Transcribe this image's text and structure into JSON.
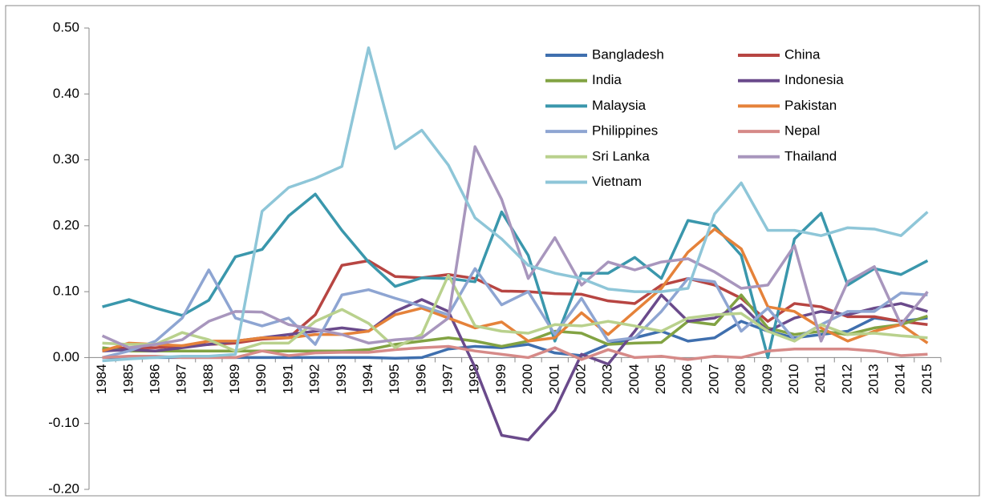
{
  "chart_data": {
    "type": "line",
    "categories": [
      "1984",
      "1985",
      "1986",
      "1987",
      "1988",
      "1989",
      "1990",
      "1991",
      "1992",
      "1993",
      "1994",
      "1995",
      "1996",
      "1997",
      "1998",
      "1999",
      "2000",
      "2001",
      "2002",
      "2003",
      "2004",
      "2005",
      "2006",
      "2007",
      "2008",
      "2009",
      "2010",
      "2011",
      "2012",
      "2013",
      "2014",
      "2015"
    ],
    "ylim": [
      -0.2,
      0.5
    ],
    "yticks": [
      {
        "value": -0.2,
        "label": "-0.20"
      },
      {
        "value": -0.1,
        "label": "-0.10"
      },
      {
        "value": 0,
        "label": "0.00"
      },
      {
        "value": 0.1,
        "label": "0.10"
      },
      {
        "value": 0.2,
        "label": "0.20"
      },
      {
        "value": 0.3,
        "label": "0.30"
      },
      {
        "value": 0.4,
        "label": "0.40"
      },
      {
        "value": 0.5,
        "label": "0.50"
      }
    ],
    "grid": false,
    "legend_position": "top-right",
    "series": [
      {
        "name": "Bangladesh",
        "color": "#3f6fae",
        "values": [
          0,
          0,
          0,
          0,
          0,
          0,
          0,
          0,
          0,
          0,
          0,
          -0.001,
          0,
          0.013,
          0.017,
          0.015,
          0.02,
          0.007,
          0.003,
          0.02,
          0.03,
          0.04,
          0.025,
          0.03,
          0.055,
          0.04,
          0.03,
          0.035,
          0.04,
          0.06,
          0.055,
          0.06
        ]
      },
      {
        "name": "China",
        "color": "#b74542",
        "values": [
          0.012,
          0.015,
          0.015,
          0.018,
          0.02,
          0.022,
          0.028,
          0.03,
          0.065,
          0.14,
          0.147,
          0.123,
          0.121,
          0.126,
          0.12,
          0.101,
          0.1,
          0.097,
          0.096,
          0.086,
          0.082,
          0.11,
          0.12,
          0.11,
          0.09,
          0.055,
          0.082,
          0.077,
          0.062,
          0.062,
          0.055,
          0.05
        ]
      },
      {
        "name": "India",
        "color": "#82a343",
        "values": [
          0.015,
          0.01,
          0.01,
          0.01,
          0.01,
          0.01,
          0.01,
          0.01,
          0.01,
          0.01,
          0.012,
          0.02,
          0.025,
          0.03,
          0.025,
          0.017,
          0.025,
          0.04,
          0.037,
          0.02,
          0.022,
          0.023,
          0.055,
          0.05,
          0.095,
          0.045,
          0.035,
          0.04,
          0.035,
          0.045,
          0.05,
          0.063
        ]
      },
      {
        "name": "Indonesia",
        "color": "#6a4a8b",
        "values": [
          0.01,
          0.012,
          0.01,
          0.015,
          0.02,
          0.025,
          0.03,
          0.035,
          0.04,
          0.045,
          0.04,
          0.07,
          0.088,
          0.07,
          -0.015,
          -0.118,
          -0.125,
          -0.08,
          0.005,
          -0.01,
          0.04,
          0.095,
          0.055,
          0.06,
          0.08,
          0.04,
          0.06,
          0.07,
          0.065,
          0.075,
          0.082,
          0.07
        ]
      },
      {
        "name": "Malaysia",
        "color": "#3a97ac",
        "values": [
          0.077,
          0.088,
          0.075,
          0.064,
          0.087,
          0.153,
          0.164,
          0.215,
          0.248,
          0.193,
          0.145,
          0.108,
          0.121,
          0.12,
          0.115,
          0.221,
          0.155,
          0.025,
          0.128,
          0.128,
          0.152,
          0.12,
          0.208,
          0.2,
          0.155,
          0,
          0.18,
          0.219,
          0.11,
          0.135,
          0.126,
          0.147
        ]
      },
      {
        "name": "Pakistan",
        "color": "#e5823a",
        "values": [
          0.01,
          0.022,
          0.02,
          0.018,
          0.025,
          0.025,
          0.03,
          0.03,
          0.035,
          0.035,
          0.04,
          0.065,
          0.075,
          0.06,
          0.045,
          0.054,
          0.025,
          0.03,
          0.068,
          0.035,
          0.07,
          0.105,
          0.16,
          0.195,
          0.165,
          0.077,
          0.07,
          0.045,
          0.025,
          0.04,
          0.05,
          0.022
        ]
      },
      {
        "name": "Philippines",
        "color": "#8ea5d2",
        "values": [
          0,
          0.01,
          0.025,
          0.06,
          0.133,
          0.06,
          0.048,
          0.06,
          0.02,
          0.095,
          0.103,
          0.09,
          0.078,
          0.065,
          0.135,
          0.08,
          0.1,
          0.035,
          0.09,
          0.025,
          0.03,
          0.07,
          0.12,
          0.115,
          0.04,
          0.075,
          0.027,
          0.05,
          0.07,
          0.07,
          0.098,
          0.095
        ]
      },
      {
        "name": "Nepal",
        "color": "#d68a88",
        "values": [
          0,
          0.002,
          0.002,
          0,
          0,
          0,
          0.01,
          0.003,
          0.007,
          0.008,
          0.008,
          0.012,
          0.015,
          0.017,
          0.01,
          0.005,
          0,
          0.015,
          -0.003,
          0.012,
          0,
          0.002,
          -0.003,
          0.002,
          0,
          0.01,
          0.013,
          0.013,
          0.013,
          0.01,
          0.003,
          0.005
        ]
      },
      {
        "name": "Sri Lanka",
        "color": "#b9d18d",
        "values": [
          0.022,
          0.02,
          0.02,
          0.038,
          0.027,
          0.01,
          0.022,
          0.022,
          0.055,
          0.073,
          0.052,
          0.015,
          0.035,
          0.125,
          0.048,
          0.04,
          0.037,
          0.05,
          0.048,
          0.055,
          0.048,
          0.04,
          0.06,
          0.065,
          0.067,
          0.04,
          0.025,
          0.05,
          0.035,
          0.037,
          0.033,
          0.03
        ]
      },
      {
        "name": "Thailand",
        "color": "#a896bd",
        "values": [
          0.033,
          0.015,
          0.02,
          0.027,
          0.055,
          0.07,
          0.069,
          0.05,
          0.043,
          0.035,
          0.022,
          0.027,
          0.03,
          0.06,
          0.32,
          0.24,
          0.12,
          0.182,
          0.11,
          0.145,
          0.133,
          0.145,
          0.15,
          0.13,
          0.105,
          0.11,
          0.17,
          0.025,
          0.115,
          0.138,
          0.05,
          0.1
        ]
      },
      {
        "name": "Vietnam",
        "color": "#8ec6d8",
        "values": [
          -0.005,
          -0.002,
          0,
          0.002,
          0.002,
          0.005,
          0.222,
          0.258,
          0.272,
          0.29,
          0.47,
          0.317,
          0.345,
          0.292,
          0.212,
          0.18,
          0.14,
          0.128,
          0.12,
          0.104,
          0.1,
          0.1,
          0.105,
          0.218,
          0.265,
          0.193,
          0.193,
          0.185,
          0.197,
          0.195,
          0.185,
          0.221
        ]
      }
    ]
  }
}
